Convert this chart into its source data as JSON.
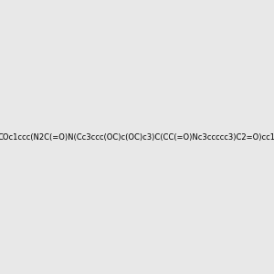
{
  "smiles": "COc1ccc(N2C(=O)N(Cc3ccc(OC)c(OC)c3)C(CC(=O)Nc3ccccc3)C2=O)cc1",
  "image_size": 300,
  "background_color": "#e8e8e8",
  "bond_color": "#000000",
  "atom_colors": {
    "N": "#0000ff",
    "O": "#ff0000",
    "H": "#008080"
  },
  "title": ""
}
